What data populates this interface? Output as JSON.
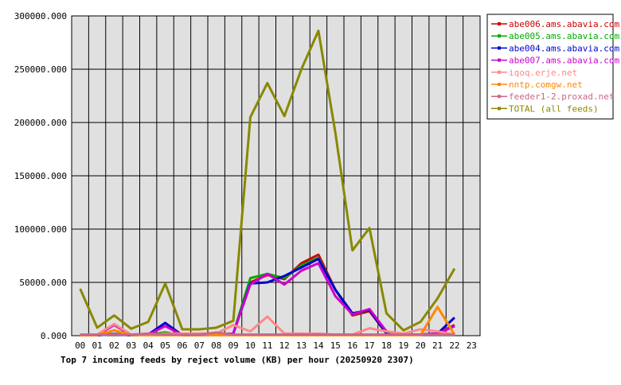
{
  "chart_data": {
    "type": "line",
    "title": "Top 7 incoming feeds by reject volume (KB) per hour (20250920 2307)",
    "categories": [
      "00",
      "01",
      "02",
      "03",
      "04",
      "05",
      "06",
      "07",
      "08",
      "09",
      "10",
      "11",
      "12",
      "13",
      "14",
      "15",
      "16",
      "17",
      "18",
      "19",
      "20",
      "21",
      "22",
      "23"
    ],
    "ylim": [
      0,
      300000
    ],
    "yticks": [
      {
        "value": 0,
        "label": "0.000"
      },
      {
        "value": 50000,
        "label": "50000.000"
      },
      {
        "value": 100000,
        "label": "100000.000"
      },
      {
        "value": 150000,
        "label": "150000.000"
      },
      {
        "value": 200000,
        "label": "200000.000"
      },
      {
        "value": 250000,
        "label": "250000.000"
      },
      {
        "value": 300000,
        "label": "300000.000"
      }
    ],
    "grid": true,
    "legend": "right",
    "series": [
      {
        "name": "abe006.ams.abavia.com",
        "color": "#cc0000",
        "values": [
          500,
          500,
          1500,
          500,
          1000,
          3000,
          500,
          500,
          1000,
          2000,
          50000,
          57000,
          53000,
          68000,
          76000,
          43000,
          19000,
          23000,
          2000,
          1000,
          1000,
          2000,
          10000,
          null
        ]
      },
      {
        "name": "abe005.ams.abavia.com",
        "color": "#00aa00",
        "values": [
          500,
          500,
          1500,
          500,
          1000,
          3000,
          500,
          500,
          1000,
          2000,
          54000,
          58000,
          54000,
          66000,
          73000,
          43000,
          20000,
          24000,
          3000,
          1000,
          1000,
          2000,
          9000,
          null
        ]
      },
      {
        "name": "abe004.ams.abavia.com",
        "color": "#0000cc",
        "values": [
          500,
          500,
          1500,
          500,
          1000,
          12000,
          500,
          500,
          1000,
          2000,
          49000,
          50000,
          56000,
          64000,
          72000,
          43000,
          21000,
          24000,
          2000,
          1000,
          1000,
          2000,
          17000,
          null
        ]
      },
      {
        "name": "abe007.ams.abavia.com",
        "color": "#cc00cc",
        "values": [
          500,
          500,
          10000,
          500,
          1000,
          9000,
          500,
          500,
          1000,
          2000,
          48000,
          58000,
          48000,
          61000,
          68000,
          37000,
          20000,
          25000,
          4000,
          1000,
          1000,
          2000,
          9000,
          null
        ]
      },
      {
        "name": "iqoq.erje.net",
        "color": "#ff8888",
        "values": [
          1000,
          1000,
          11000,
          1000,
          1000,
          2000,
          2000,
          2000,
          2000,
          10000,
          4000,
          18000,
          2000,
          2000,
          2000,
          1000,
          1000,
          7000,
          4000,
          2000,
          6000,
          4000,
          1000,
          null
        ]
      },
      {
        "name": "nntp.comgw.net",
        "color": "#ff8800",
        "values": [
          500,
          500,
          5000,
          500,
          500,
          500,
          500,
          500,
          500,
          500,
          500,
          500,
          500,
          500,
          500,
          500,
          500,
          500,
          500,
          500,
          500,
          27000,
          1000,
          null
        ]
      },
      {
        "name": "feeder1-2.proxad.net",
        "color": "#cc6688",
        "values": [
          1000,
          1000,
          1000,
          1000,
          2000,
          1000,
          1000,
          1000,
          3000,
          1000,
          1000,
          1000,
          1000,
          1000,
          1000,
          1000,
          1000,
          1000,
          1000,
          1000,
          1000,
          1000,
          1000,
          null
        ]
      },
      {
        "name": "TOTAL (all feeds)",
        "color": "#888800",
        "values": [
          44000,
          7500,
          19000,
          6500,
          13000,
          49000,
          6000,
          6000,
          7500,
          14000,
          205000,
          237000,
          206000,
          250000,
          286000,
          190000,
          80000,
          101000,
          21000,
          5000,
          13000,
          35000,
          63000,
          null
        ]
      }
    ]
  }
}
